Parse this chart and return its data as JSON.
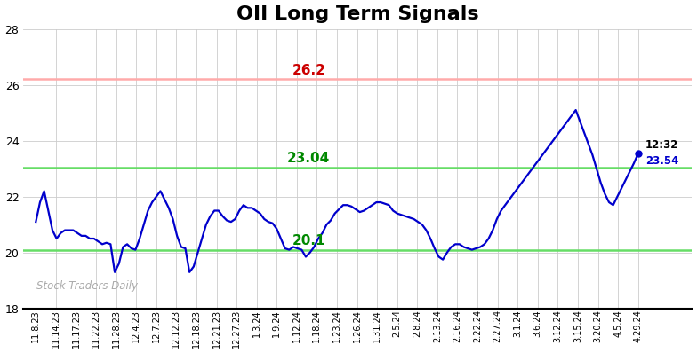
{
  "title": "OII Long Term Signals",
  "title_fontsize": 16,
  "title_fontweight": "bold",
  "hline_red": 26.2,
  "hline_green_upper": 23.04,
  "hline_green_lower": 20.1,
  "hline_red_color": "#ffaaaa",
  "hline_green_color": "#66dd66",
  "label_red": "26.2",
  "label_green_upper": "23.04",
  "label_green_lower": "20.1",
  "label_red_color": "#cc0000",
  "label_green_color": "#008800",
  "last_time": "12:32",
  "last_price": "23.54",
  "last_price_float": 23.54,
  "last_dot_color": "#0000cc",
  "watermark": "Stock Traders Daily",
  "watermark_color": "#aaaaaa",
  "ylim": [
    18,
    28
  ],
  "yticks": [
    18,
    20,
    22,
    24,
    26,
    28
  ],
  "bg_color": "#ffffff",
  "grid_color": "#cccccc",
  "line_color": "#0000cc",
  "line_width": 1.6,
  "xtick_labels": [
    "11.8.23",
    "11.14.23",
    "11.17.23",
    "11.22.23",
    "11.28.23",
    "12.4.23",
    "12.7.23",
    "12.12.23",
    "12.18.23",
    "12.21.23",
    "12.27.23",
    "1.3.24",
    "1.9.24",
    "1.12.24",
    "1.18.24",
    "1.23.24",
    "1.26.24",
    "1.31.24",
    "2.5.24",
    "2.8.24",
    "2.13.24",
    "2.16.24",
    "2.22.24",
    "2.27.24",
    "3.1.24",
    "3.6.24",
    "3.12.24",
    "3.15.24",
    "3.20.24",
    "4.5.24",
    "4.29.24"
  ],
  "prices": [
    21.1,
    21.8,
    22.2,
    21.5,
    20.8,
    20.5,
    20.7,
    20.8,
    20.8,
    20.8,
    20.7,
    20.6,
    20.6,
    20.5,
    20.5,
    20.4,
    20.3,
    20.35,
    20.3,
    19.3,
    19.6,
    20.2,
    20.3,
    20.15,
    20.1,
    20.5,
    21.0,
    21.5,
    21.8,
    22.0,
    22.2,
    21.9,
    21.6,
    21.2,
    20.6,
    20.2,
    20.15,
    19.3,
    19.5,
    20.0,
    20.5,
    21.0,
    21.3,
    21.5,
    21.5,
    21.3,
    21.15,
    21.1,
    21.2,
    21.5,
    21.7,
    21.6,
    21.6,
    21.5,
    21.4,
    21.2,
    21.1,
    21.05,
    20.85,
    20.5,
    20.15,
    20.1,
    20.2,
    20.15,
    20.1,
    19.85,
    20.0,
    20.2,
    20.5,
    20.7,
    21.0,
    21.15,
    21.4,
    21.55,
    21.7,
    21.7,
    21.65,
    21.55,
    21.45,
    21.5,
    21.6,
    21.7,
    21.8,
    21.8,
    21.75,
    21.7,
    21.5,
    21.4,
    21.35,
    21.3,
    21.25,
    21.2,
    21.1,
    21.0,
    20.8,
    20.5,
    20.15,
    19.85,
    19.75,
    20.0,
    20.2,
    20.3,
    20.3,
    20.2,
    20.15,
    20.1,
    20.15,
    20.2,
    20.3,
    20.5,
    20.8,
    21.2,
    21.5,
    21.7,
    21.9,
    22.1,
    22.3,
    22.5,
    22.7,
    22.9,
    23.1,
    23.3,
    23.5,
    23.7,
    23.9,
    24.1,
    24.3,
    24.5,
    24.7,
    24.9,
    25.1,
    24.7,
    24.3,
    23.9,
    23.5,
    23.0,
    22.5,
    22.1,
    21.8,
    21.7,
    22.0,
    22.3,
    22.6,
    22.9,
    23.2,
    23.54
  ]
}
